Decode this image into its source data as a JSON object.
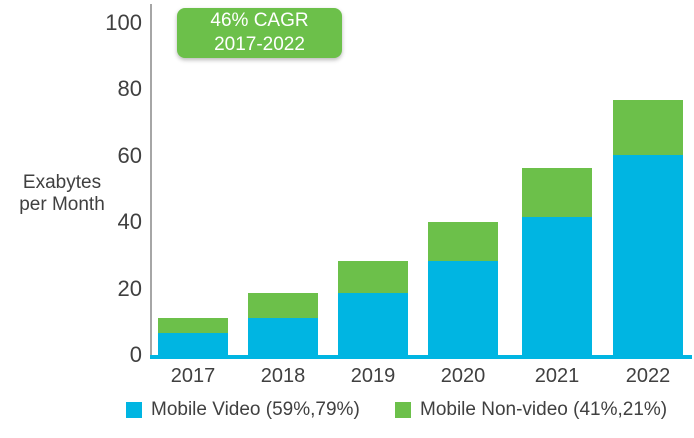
{
  "colors": {
    "video": "#00b5e2",
    "nonvideo": "#6cc04a",
    "axis_line": "#a6a6a6",
    "text": "#404040",
    "badge_bg": "#6cc04a",
    "badge_text": "#ffffff"
  },
  "badge": {
    "line1": "46% CAGR",
    "line2": "2017-2022"
  },
  "y_axis": {
    "label_line1": "Exabytes",
    "label_line2": "per Month"
  },
  "legend": {
    "video_label": "Mobile Video (59%,79%)",
    "nonvideo_label": "Mobile Non-video (41%,21%)"
  },
  "chart_data": {
    "type": "bar",
    "stacked": true,
    "title": "",
    "annotation": "46% CAGR 2017-2022",
    "ylabel": "Exabytes per Month",
    "xlabel": "",
    "ylim": [
      0,
      100
    ],
    "y_ticks": [
      0,
      20,
      40,
      60,
      80,
      100
    ],
    "grid": false,
    "legend_position": "bottom",
    "categories": [
      "2017",
      "2018",
      "2019",
      "2020",
      "2021",
      "2022"
    ],
    "series": [
      {
        "name": "Mobile Video (59%,79%)",
        "color": "#00b5e2",
        "values": [
          6.8,
          11.5,
          19,
          28.5,
          42,
          60.5
        ]
      },
      {
        "name": "Mobile Non-video (41%,21%)",
        "color": "#6cc04a",
        "values": [
          4.7,
          7.5,
          9.5,
          12,
          14.5,
          16.5
        ]
      }
    ],
    "totals": [
      11.5,
      19,
      28.5,
      40.5,
      56.5,
      77
    ]
  }
}
